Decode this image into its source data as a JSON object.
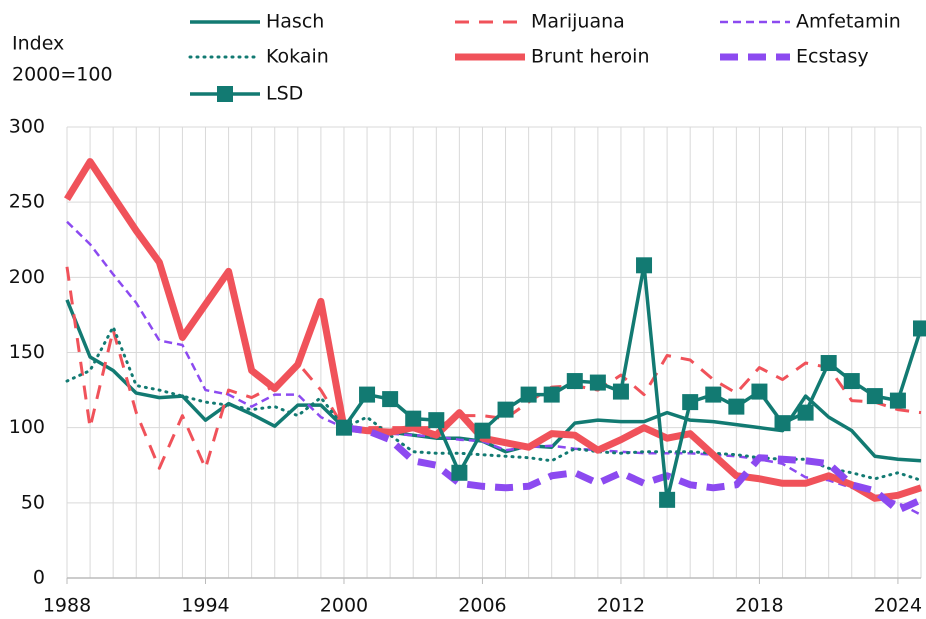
{
  "chart_data": {
    "type": "line",
    "ylabel": [
      "Index",
      "2000=100"
    ],
    "x": [
      1988,
      1989,
      1990,
      1991,
      1992,
      1993,
      1994,
      1995,
      1996,
      1997,
      1998,
      1999,
      2000,
      2001,
      2002,
      2003,
      2004,
      2005,
      2006,
      2007,
      2008,
      2009,
      2010,
      2011,
      2012,
      2013,
      2014,
      2015,
      2016,
      2017,
      2018,
      2019,
      2020,
      2021,
      2022,
      2023,
      2024,
      2025
    ],
    "xlim": [
      1988,
      2025
    ],
    "xticks": [
      1988,
      1994,
      2000,
      2006,
      2012,
      2018,
      2024
    ],
    "minor_xticks": [
      1988,
      1989,
      1990,
      1991,
      1992,
      1993,
      1994,
      1995,
      1996,
      1997,
      1998,
      1999,
      2000,
      2001,
      2002,
      2003,
      2004,
      2005,
      2006,
      2007,
      2008,
      2009,
      2010,
      2011,
      2012,
      2013,
      2014,
      2015,
      2016,
      2017,
      2018,
      2019,
      2020,
      2021,
      2022,
      2023,
      2024,
      2025
    ],
    "ylim": [
      0,
      300
    ],
    "yticks": [
      0,
      50,
      100,
      150,
      200,
      250,
      300
    ],
    "grid": true,
    "series": [
      {
        "name": "Hasch",
        "color": "#127a72",
        "width": 3.5,
        "dash": "none",
        "values": [
          185,
          147,
          138,
          123,
          120,
          121,
          105,
          116,
          109,
          101,
          115,
          115,
          100,
          99,
          97,
          95,
          93,
          93,
          91,
          84,
          88,
          87,
          103,
          105,
          104,
          104,
          110,
          105,
          104,
          102,
          100,
          98,
          121,
          107,
          98,
          81,
          79,
          78
        ]
      },
      {
        "name": "Marijuana",
        "color": "#f0525a",
        "width": 3,
        "dash": "14,10",
        "values": [
          207,
          100,
          165,
          110,
          73,
          108,
          73,
          125,
          120,
          128,
          143,
          125,
          100,
          100,
          100,
          100,
          100,
          108,
          108,
          106,
          117,
          127,
          128,
          125,
          135,
          122,
          148,
          145,
          132,
          123,
          140,
          132,
          143,
          140,
          118,
          117,
          112,
          110
        ]
      },
      {
        "name": "Amfetamin",
        "color": "#8c4af0",
        "width": 2.5,
        "dash": "8,5",
        "values": [
          237,
          222,
          202,
          183,
          158,
          155,
          125,
          122,
          114,
          122,
          122,
          107,
          100,
          98,
          96,
          95,
          94,
          92,
          91,
          85,
          87,
          88,
          86,
          85,
          84,
          83,
          83,
          83,
          82,
          81,
          79,
          76,
          67,
          65,
          60,
          55,
          50,
          42
        ]
      },
      {
        "name": "Kokain",
        "color": "#127a72",
        "width": 3,
        "dash": "1,6",
        "values": [
          131,
          138,
          167,
          128,
          125,
          121,
          117,
          115,
          112,
          114,
          108,
          120,
          100,
          107,
          95,
          84,
          83,
          83,
          82,
          81,
          80,
          78,
          86,
          84,
          83,
          84,
          84,
          84,
          83,
          82,
          80,
          79,
          79,
          73,
          70,
          66,
          70,
          65
        ]
      },
      {
        "name": "Brunt heroin",
        "color": "#f0525a",
        "width": 7,
        "dash": "none",
        "values": [
          252,
          277,
          254,
          231,
          210,
          160,
          182,
          204,
          138,
          126,
          142,
          184,
          100,
          98,
          97,
          100,
          95,
          110,
          93,
          90,
          87,
          96,
          95,
          85,
          92,
          100,
          93,
          96,
          82,
          68,
          66,
          63,
          63,
          68,
          62,
          53,
          55,
          60
        ]
      },
      {
        "name": "Ecstasy",
        "color": "#8c4af0",
        "width": 7,
        "dash": "18,10",
        "values": [
          null,
          null,
          null,
          null,
          null,
          null,
          null,
          null,
          null,
          null,
          null,
          null,
          100,
          98,
          92,
          78,
          75,
          63,
          61,
          60,
          61,
          68,
          70,
          63,
          70,
          63,
          68,
          62,
          60,
          62,
          80,
          79,
          78,
          76,
          62,
          58,
          45,
          52
        ]
      },
      {
        "name": "LSD",
        "color": "#127a72",
        "width": 3.5,
        "dash": "none",
        "marker": "square",
        "values": [
          null,
          null,
          null,
          null,
          null,
          null,
          null,
          null,
          null,
          null,
          null,
          null,
          100,
          122,
          119,
          106,
          105,
          70,
          98,
          112,
          122,
          122,
          131,
          130,
          124,
          208,
          52,
          117,
          122,
          114,
          124,
          103,
          110,
          143,
          131,
          121,
          118,
          166
        ]
      }
    ]
  }
}
